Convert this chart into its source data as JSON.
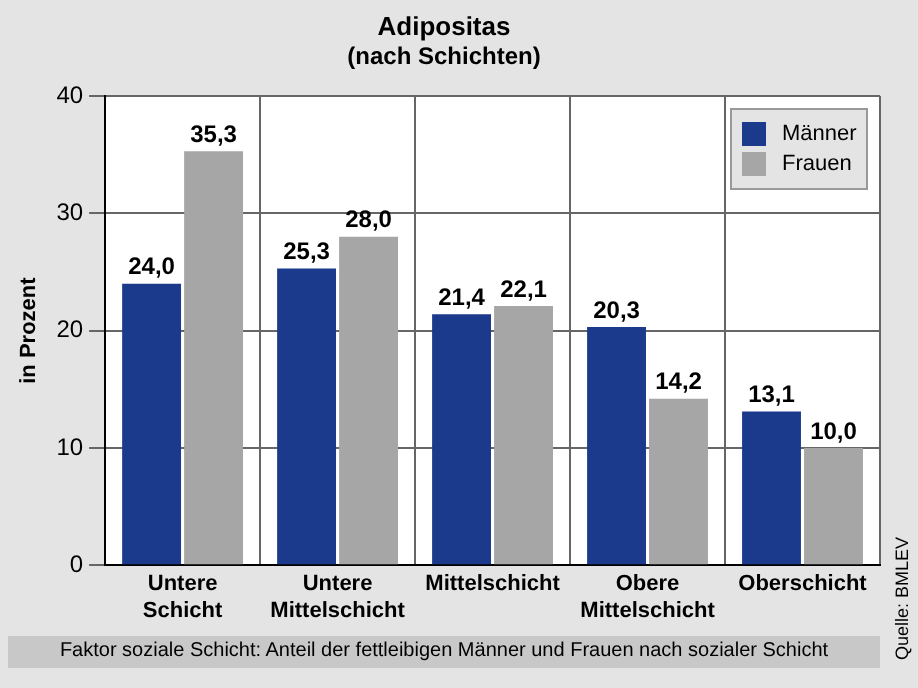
{
  "chart_data": {
    "type": "bar",
    "title": "Adipositas",
    "subtitle": "(nach Schichten)",
    "ylabel": "in Prozent",
    "categories": [
      "Untere Schicht",
      "Untere Mittelschicht",
      "Mittelschicht",
      "Obere Mittelschicht",
      "Oberschicht"
    ],
    "series": [
      {
        "name": "Männer",
        "color": "#1c3a8c",
        "values": [
          24.0,
          25.3,
          21.4,
          20.3,
          13.1
        ],
        "value_labels": [
          "24,0",
          "25,3",
          "21,4",
          "20,3",
          "13,1"
        ]
      },
      {
        "name": "Frauen",
        "color": "#a6a6a6",
        "values": [
          35.3,
          28.0,
          22.1,
          14.2,
          10.0
        ],
        "value_labels": [
          "35,3",
          "28,0",
          "22,1",
          "14,2",
          "10,0"
        ]
      }
    ],
    "ylim": [
      0,
      40
    ],
    "yticks": [
      0,
      10,
      20,
      30,
      40
    ],
    "grid": true,
    "legend": "top right",
    "annotations": [
      "Faktor soziale Schicht: Anteil der fettleibigen Männer und Frauen nach sozialer Schicht",
      "Quelle: BMLEV"
    ]
  }
}
